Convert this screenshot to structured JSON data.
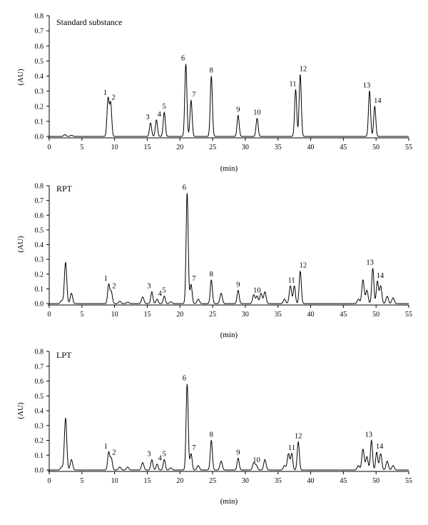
{
  "chart_data": [
    {
      "type": "line",
      "title": "Standard substance",
      "xlabel": "(min)",
      "ylabel": "(AU)",
      "xlim": [
        0,
        55
      ],
      "ylim": [
        0,
        0.8
      ],
      "x_ticks": [
        "0",
        "5",
        "10",
        "15",
        "20",
        "25",
        "30",
        "35",
        "40",
        "45",
        "50",
        "55"
      ],
      "y_ticks": [
        "0.0",
        "0.1",
        "0.2",
        "0.3",
        "0.4",
        "0.5",
        "0.6",
        "0.7",
        "0.8"
      ],
      "baseline": 0.0,
      "peaks": [
        {
          "label": "1",
          "x": 9.0,
          "y": 0.25
        },
        {
          "label": "2",
          "x": 9.4,
          "y": 0.22
        },
        {
          "label": "3",
          "x": 15.5,
          "y": 0.09
        },
        {
          "label": "4",
          "x": 16.4,
          "y": 0.11
        },
        {
          "label": "5",
          "x": 17.6,
          "y": 0.16
        },
        {
          "label": "6",
          "x": 20.9,
          "y": 0.48
        },
        {
          "label": "7",
          "x": 21.7,
          "y": 0.24
        },
        {
          "label": "8",
          "x": 24.8,
          "y": 0.4
        },
        {
          "label": "9",
          "x": 28.9,
          "y": 0.14
        },
        {
          "label": "10",
          "x": 31.8,
          "y": 0.12
        },
        {
          "label": "11",
          "x": 37.7,
          "y": 0.31
        },
        {
          "label": "12",
          "x": 38.4,
          "y": 0.41
        },
        {
          "label": "13",
          "x": 49.0,
          "y": 0.3
        },
        {
          "label": "14",
          "x": 49.8,
          "y": 0.2
        }
      ],
      "minor_peaks": [
        {
          "x": 2.4,
          "y": 0.012
        },
        {
          "x": 3.4,
          "y": 0.008
        }
      ]
    },
    {
      "type": "line",
      "title": "RPT",
      "xlabel": "(min)",
      "ylabel": "(AU)",
      "xlim": [
        0,
        55
      ],
      "ylim": [
        0,
        0.8
      ],
      "x_ticks": [
        "0",
        "5",
        "10",
        "15",
        "20",
        "25",
        "30",
        "35",
        "40",
        "45",
        "50",
        "55"
      ],
      "y_ticks": [
        "0.0",
        "0.1",
        "0.2",
        "0.3",
        "0.4",
        "0.5",
        "0.6",
        "0.7",
        "0.8"
      ],
      "baseline": 0.0,
      "peaks": [
        {
          "label": "1",
          "x": 9.1,
          "y": 0.13
        },
        {
          "label": "2",
          "x": 9.5,
          "y": 0.08
        },
        {
          "label": "3",
          "x": 15.7,
          "y": 0.08
        },
        {
          "label": "4",
          "x": 16.5,
          "y": 0.03
        },
        {
          "label": "5",
          "x": 17.6,
          "y": 0.05
        },
        {
          "label": "6",
          "x": 21.1,
          "y": 0.75
        },
        {
          "label": "7",
          "x": 21.7,
          "y": 0.13
        },
        {
          "label": "8",
          "x": 24.8,
          "y": 0.16
        },
        {
          "label": "9",
          "x": 28.9,
          "y": 0.09
        },
        {
          "label": "10",
          "x": 31.8,
          "y": 0.05
        },
        {
          "label": "11",
          "x": 37.5,
          "y": 0.12
        },
        {
          "label": "12",
          "x": 38.4,
          "y": 0.22
        },
        {
          "label": "13",
          "x": 49.5,
          "y": 0.24
        },
        {
          "label": "14",
          "x": 50.2,
          "y": 0.15
        }
      ],
      "minor_peaks": [
        {
          "x": 2.5,
          "y": 0.28
        },
        {
          "x": 3.4,
          "y": 0.07
        },
        {
          "x": 1.9,
          "y": 0.02
        },
        {
          "x": 10.8,
          "y": 0.015
        },
        {
          "x": 12.0,
          "y": 0.01
        },
        {
          "x": 14.3,
          "y": 0.045
        },
        {
          "x": 18.6,
          "y": 0.012
        },
        {
          "x": 22.8,
          "y": 0.03
        },
        {
          "x": 26.3,
          "y": 0.07
        },
        {
          "x": 31.3,
          "y": 0.06
        },
        {
          "x": 32.4,
          "y": 0.07
        },
        {
          "x": 33.0,
          "y": 0.08
        },
        {
          "x": 36.0,
          "y": 0.03
        },
        {
          "x": 36.9,
          "y": 0.12
        },
        {
          "x": 47.3,
          "y": 0.03
        },
        {
          "x": 48.0,
          "y": 0.16
        },
        {
          "x": 48.6,
          "y": 0.09
        },
        {
          "x": 50.7,
          "y": 0.12
        },
        {
          "x": 51.7,
          "y": 0.05
        },
        {
          "x": 52.6,
          "y": 0.04
        }
      ]
    },
    {
      "type": "line",
      "title": "LPT",
      "xlabel": "(min)",
      "ylabel": "(AU)",
      "xlim": [
        0,
        55
      ],
      "ylim": [
        0,
        0.8
      ],
      "x_ticks": [
        "0",
        "5",
        "10",
        "15",
        "20",
        "25",
        "30",
        "35",
        "40",
        "45",
        "50",
        "55"
      ],
      "y_ticks": [
        "0.0",
        "0.1",
        "0.2",
        "0.3",
        "0.4",
        "0.5",
        "0.6",
        "0.7",
        "0.8"
      ],
      "baseline": 0.0,
      "peaks": [
        {
          "label": "1",
          "x": 9.1,
          "y": 0.12
        },
        {
          "label": "2",
          "x": 9.5,
          "y": 0.08
        },
        {
          "label": "3",
          "x": 15.7,
          "y": 0.07
        },
        {
          "label": "4",
          "x": 16.5,
          "y": 0.04
        },
        {
          "label": "5",
          "x": 17.6,
          "y": 0.07
        },
        {
          "label": "6",
          "x": 21.1,
          "y": 0.58
        },
        {
          "label": "7",
          "x": 21.7,
          "y": 0.11
        },
        {
          "label": "8",
          "x": 24.8,
          "y": 0.2
        },
        {
          "label": "9",
          "x": 28.9,
          "y": 0.08
        },
        {
          "label": "10",
          "x": 31.7,
          "y": 0.03
        },
        {
          "label": "11",
          "x": 37.1,
          "y": 0.11
        },
        {
          "label": "12",
          "x": 38.1,
          "y": 0.19
        },
        {
          "label": "13",
          "x": 49.3,
          "y": 0.2
        },
        {
          "label": "14",
          "x": 50.1,
          "y": 0.12
        }
      ],
      "minor_peaks": [
        {
          "x": 2.5,
          "y": 0.35
        },
        {
          "x": 3.4,
          "y": 0.07
        },
        {
          "x": 1.9,
          "y": 0.02
        },
        {
          "x": 10.8,
          "y": 0.02
        },
        {
          "x": 12.0,
          "y": 0.02
        },
        {
          "x": 14.3,
          "y": 0.05
        },
        {
          "x": 18.6,
          "y": 0.015
        },
        {
          "x": 22.8,
          "y": 0.03
        },
        {
          "x": 26.3,
          "y": 0.06
        },
        {
          "x": 31.3,
          "y": 0.05
        },
        {
          "x": 33.0,
          "y": 0.07
        },
        {
          "x": 36.0,
          "y": 0.03
        },
        {
          "x": 36.6,
          "y": 0.11
        },
        {
          "x": 47.3,
          "y": 0.03
        },
        {
          "x": 48.0,
          "y": 0.14
        },
        {
          "x": 48.6,
          "y": 0.09
        },
        {
          "x": 50.7,
          "y": 0.11
        },
        {
          "x": 51.7,
          "y": 0.06
        },
        {
          "x": 52.6,
          "y": 0.03
        }
      ]
    }
  ]
}
